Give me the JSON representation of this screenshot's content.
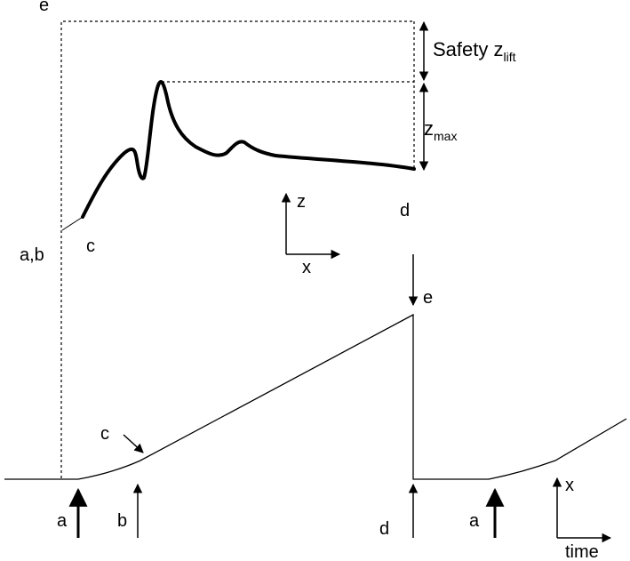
{
  "top_panel": {
    "label_e": "e",
    "label_ab": "a,b",
    "label_c": "c",
    "label_d": "d",
    "safety_text": "Safety z",
    "safety_sub": "lift",
    "zmax_text": "z",
    "zmax_sub": "max",
    "axis_z": "z",
    "axis_x": "x"
  },
  "bottom_panel": {
    "label_e": "e",
    "label_c": "c",
    "label_a_first": "a",
    "label_b": "b",
    "label_d": "d",
    "label_a_second": "a",
    "axis_x": "x",
    "axis_time": "time"
  },
  "colors": {
    "ink": "#000000",
    "background": "#ffffff"
  }
}
